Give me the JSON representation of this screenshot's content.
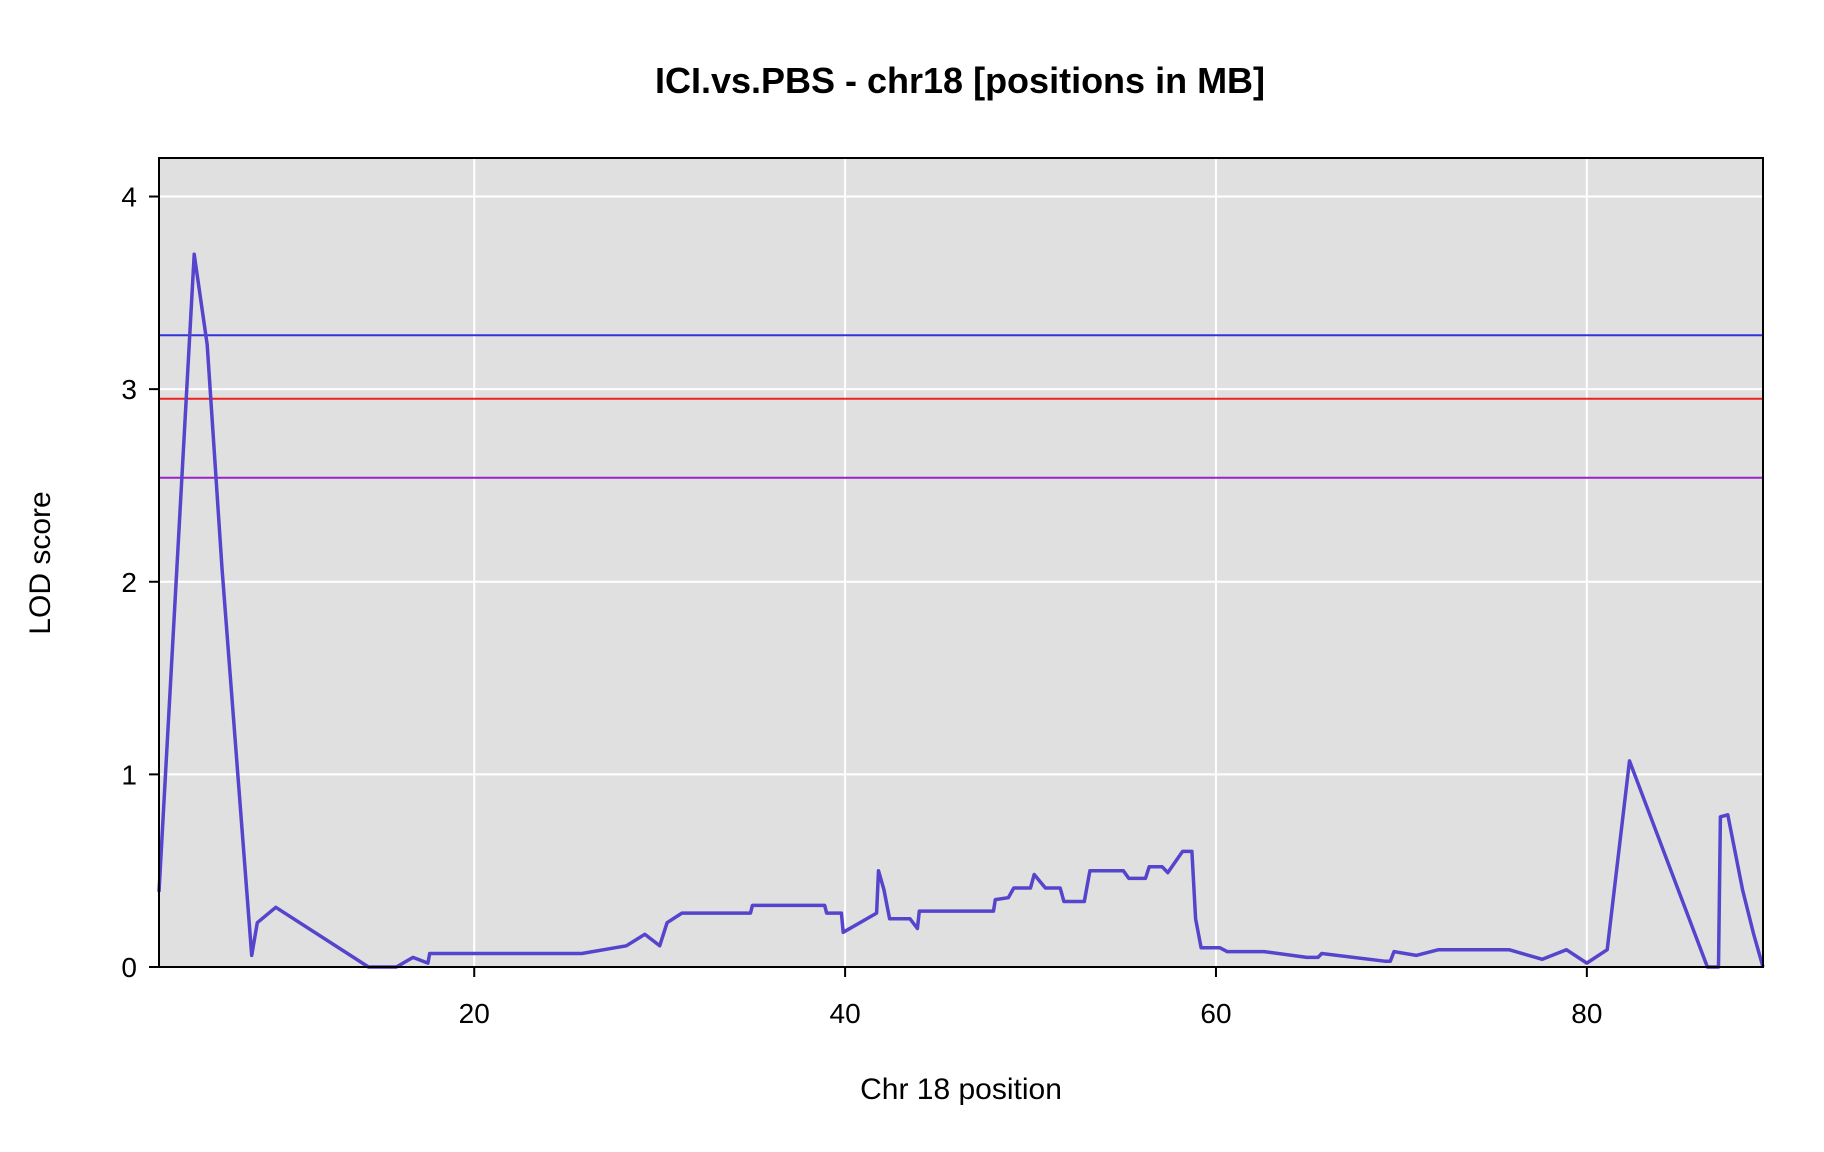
{
  "chart_data": {
    "type": "line",
    "title": "ICI.vs.PBS - chr18 [positions in MB]",
    "xlabel": "Chr 18 position",
    "ylabel": "LOD score",
    "xlim": [
      3,
      89.5
    ],
    "ylim": [
      0,
      4.2
    ],
    "xticks": [
      "20",
      "40",
      "60",
      "80"
    ],
    "yticks": [
      "0",
      "1",
      "2",
      "3",
      "4"
    ],
    "grid": true,
    "background": "#e0e0e0",
    "thresholds": [
      {
        "value": 3.28,
        "color": "#3333dd"
      },
      {
        "value": 2.95,
        "color": "#ee2222"
      },
      {
        "value": 2.54,
        "color": "#9922cc"
      }
    ],
    "series": [
      {
        "color": "#5544cc",
        "x": [
          3.0,
          4.9,
          5.6,
          6.4,
          8.0,
          8.3,
          9.3,
          14.3,
          15.8,
          16.7,
          17.5,
          17.6,
          25.8,
          28.2,
          29.2,
          30.0,
          30.4,
          31.2,
          32.2,
          34.9,
          35.0,
          38.9,
          39.0,
          39.8,
          39.9,
          41.7,
          41.8,
          42.1,
          42.4,
          43.5,
          43.9,
          44.0,
          48.0,
          48.1,
          48.8,
          49.1,
          50.0,
          50.2,
          50.8,
          51.6,
          51.8,
          52.9,
          53.2,
          55.0,
          55.3,
          56.2,
          56.4,
          57.1,
          57.4,
          58.2,
          58.7,
          58.9,
          59.2,
          60.2,
          60.6,
          62.6,
          64.9,
          65.5,
          65.7,
          69.1,
          69.4,
          69.6,
          70.8,
          72.0,
          75.8,
          77.6,
          78.9,
          80.0,
          81.1,
          82.3,
          86.5,
          87.1,
          87.2,
          87.6,
          88.4,
          89.0,
          89.5
        ],
        "y": [
          0.39,
          3.7,
          3.23,
          2.07,
          0.06,
          0.23,
          0.31,
          0.0,
          0.0,
          0.05,
          0.02,
          0.07,
          0.07,
          0.11,
          0.17,
          0.11,
          0.23,
          0.28,
          0.28,
          0.28,
          0.32,
          0.32,
          0.28,
          0.28,
          0.18,
          0.28,
          0.5,
          0.4,
          0.25,
          0.25,
          0.2,
          0.29,
          0.29,
          0.35,
          0.36,
          0.41,
          0.41,
          0.48,
          0.41,
          0.41,
          0.34,
          0.34,
          0.5,
          0.5,
          0.46,
          0.46,
          0.52,
          0.52,
          0.49,
          0.6,
          0.6,
          0.25,
          0.1,
          0.1,
          0.08,
          0.08,
          0.05,
          0.05,
          0.07,
          0.03,
          0.03,
          0.08,
          0.06,
          0.09,
          0.09,
          0.04,
          0.09,
          0.02,
          0.09,
          1.07,
          0.0,
          0.0,
          0.78,
          0.79,
          0.4,
          0.17,
          0.0
        ]
      }
    ]
  }
}
